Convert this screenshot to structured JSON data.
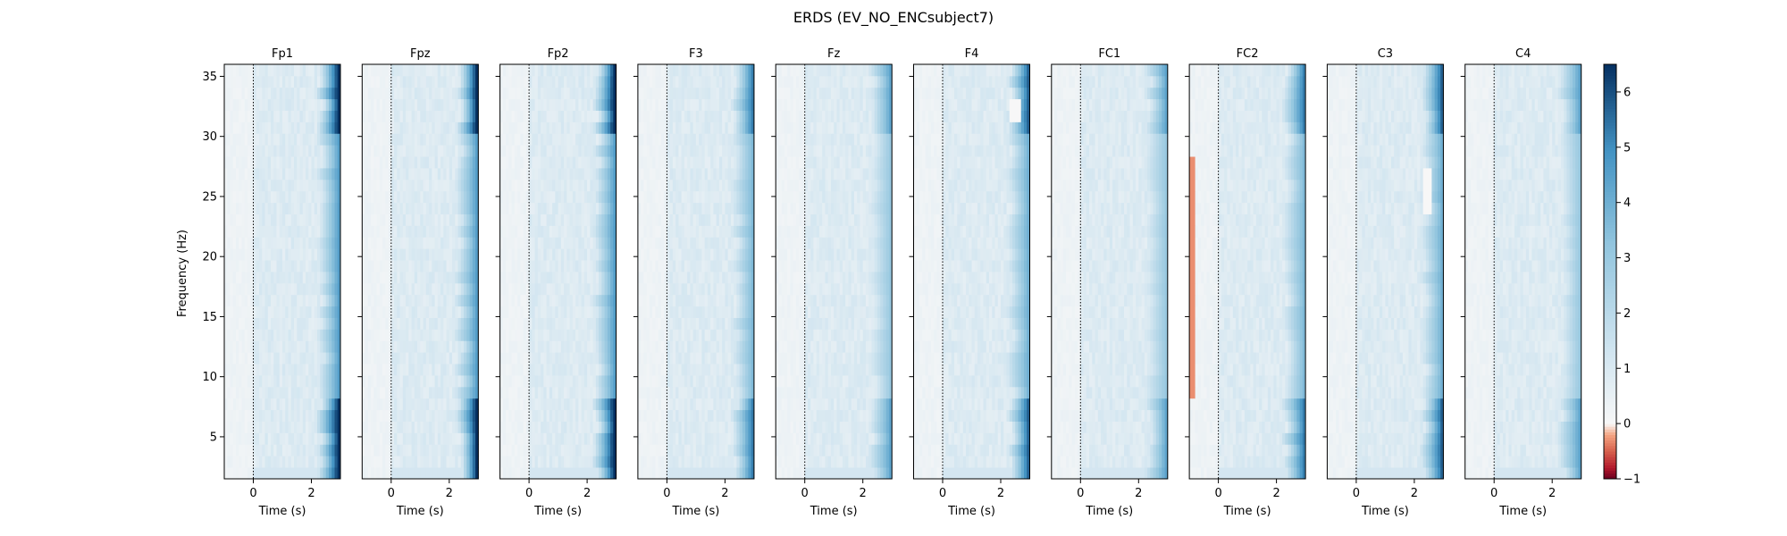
{
  "figure": {
    "title": "ERDS (EV_NO_ENCsubject7)"
  },
  "chart_data": {
    "type": "heatmap",
    "title": "ERDS (EV_NO_ENCsubject7)",
    "xlabel": "Time (s)",
    "ylabel": "Frequency (Hz)",
    "xlim": [
      -1,
      3
    ],
    "ylim": [
      1.5,
      36
    ],
    "x_ticks": [
      0,
      2
    ],
    "y_ticks": [
      5,
      10,
      15,
      20,
      25,
      30,
      35
    ],
    "onset_line_x": 0,
    "grid": false,
    "colorbar": {
      "range": [
        -1,
        6.5
      ],
      "ticks": [
        -1,
        0,
        1,
        2,
        3,
        4,
        5,
        6
      ],
      "colormap": "RdBu",
      "center": 0
    },
    "colors": {
      "negative": "#b2182b",
      "zero": "#f7f7f7",
      "positive": "#053061"
    },
    "channels": [
      "Fp1",
      "Fpz",
      "Fp2",
      "F3",
      "Fz",
      "F4",
      "FC1",
      "FC2",
      "C3",
      "C4"
    ],
    "approx_values": {
      "baseline_region": 0.2,
      "post_onset_background": 0.6,
      "late_edge_peak": [
        6.5,
        6.5,
        6.5,
        5,
        4,
        5.5,
        4,
        5,
        5.5,
        4
      ],
      "FC2_early_negative": -0.3
    }
  }
}
